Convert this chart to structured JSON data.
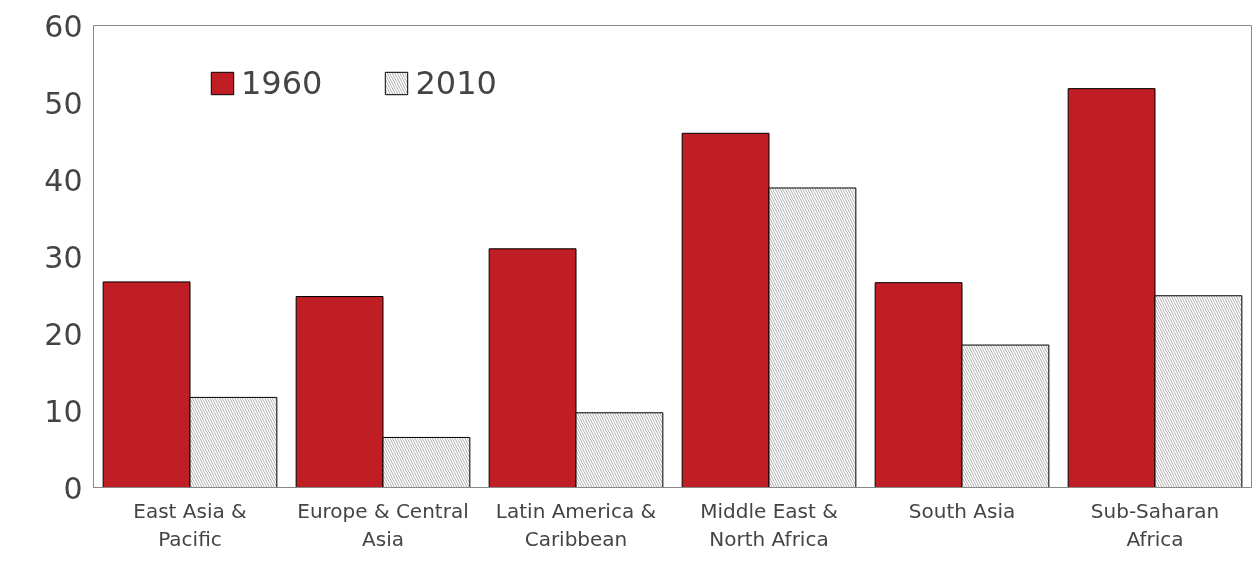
{
  "chart_data": {
    "type": "bar",
    "categories": [
      "East Asia & Pacific",
      "Europe & Central Asia",
      "Latin America & Caribbean",
      "Middle East & North Africa",
      "South Asia",
      "Sub-Saharan Africa"
    ],
    "series": [
      {
        "name": "1960",
        "color": "#be1e24",
        "values": [
          26.7,
          24.8,
          31.0,
          46.0,
          26.6,
          51.8
        ]
      },
      {
        "name": "2010",
        "color": "#a6a6a6",
        "values": [
          11.7,
          6.5,
          9.7,
          38.9,
          18.5,
          24.9
        ]
      }
    ],
    "ylim": [
      0,
      60
    ],
    "yticks": [
      0,
      10,
      20,
      30,
      40,
      50,
      60
    ],
    "grid": false,
    "legend": "top left"
  }
}
